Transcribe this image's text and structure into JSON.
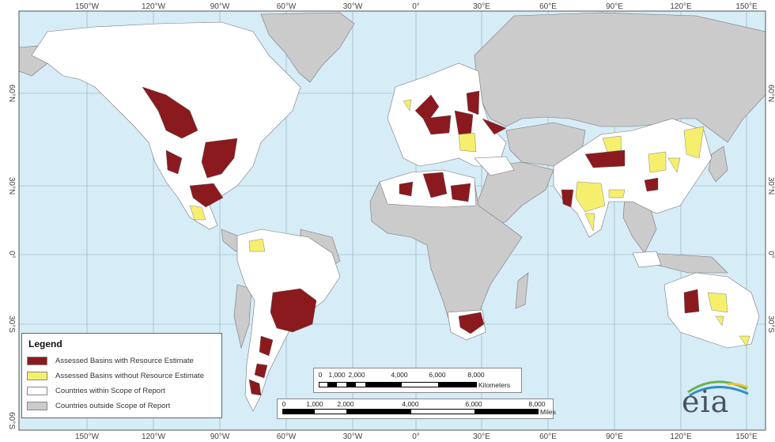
{
  "map": {
    "longitude_labels": [
      "150°W",
      "120°W",
      "90°W",
      "60°W",
      "30°W",
      "0°",
      "30°E",
      "60°E",
      "90°E",
      "120°E",
      "150°E"
    ],
    "latitude_labels": [
      "60°N",
      "30°N",
      "0°",
      "30°S",
      "60°S"
    ],
    "colors": {
      "ocean": "#d6ecf7",
      "in_scope": "#ffffff",
      "out_of_scope": "#cbcbcb",
      "basin_with_estimate": "#8b1a1f",
      "basin_without_estimate": "#f6ef6e",
      "border": "#777777"
    }
  },
  "legend": {
    "title": "Legend",
    "items": [
      {
        "label": "Assessed Basins with Resource Estimate",
        "color": "#8b1a1f"
      },
      {
        "label": "Assessed Basins without Resource Estimate",
        "color": "#f6ef6e"
      },
      {
        "label": "Countries within Scope of Report",
        "color": "#ffffff"
      },
      {
        "label": "Countries outside Scope of Report",
        "color": "#cbcbcb"
      }
    ]
  },
  "scale_km": {
    "ticks": [
      "0",
      "1,000",
      "2,000",
      "4,000",
      "6,000",
      "8,000"
    ],
    "unit": "Kilometers"
  },
  "scale_miles": {
    "ticks": [
      "0",
      "1,000",
      "2,000",
      "4,000",
      "6,000",
      "8,000"
    ],
    "unit": "Miles"
  },
  "logo": {
    "text": "eia"
  }
}
